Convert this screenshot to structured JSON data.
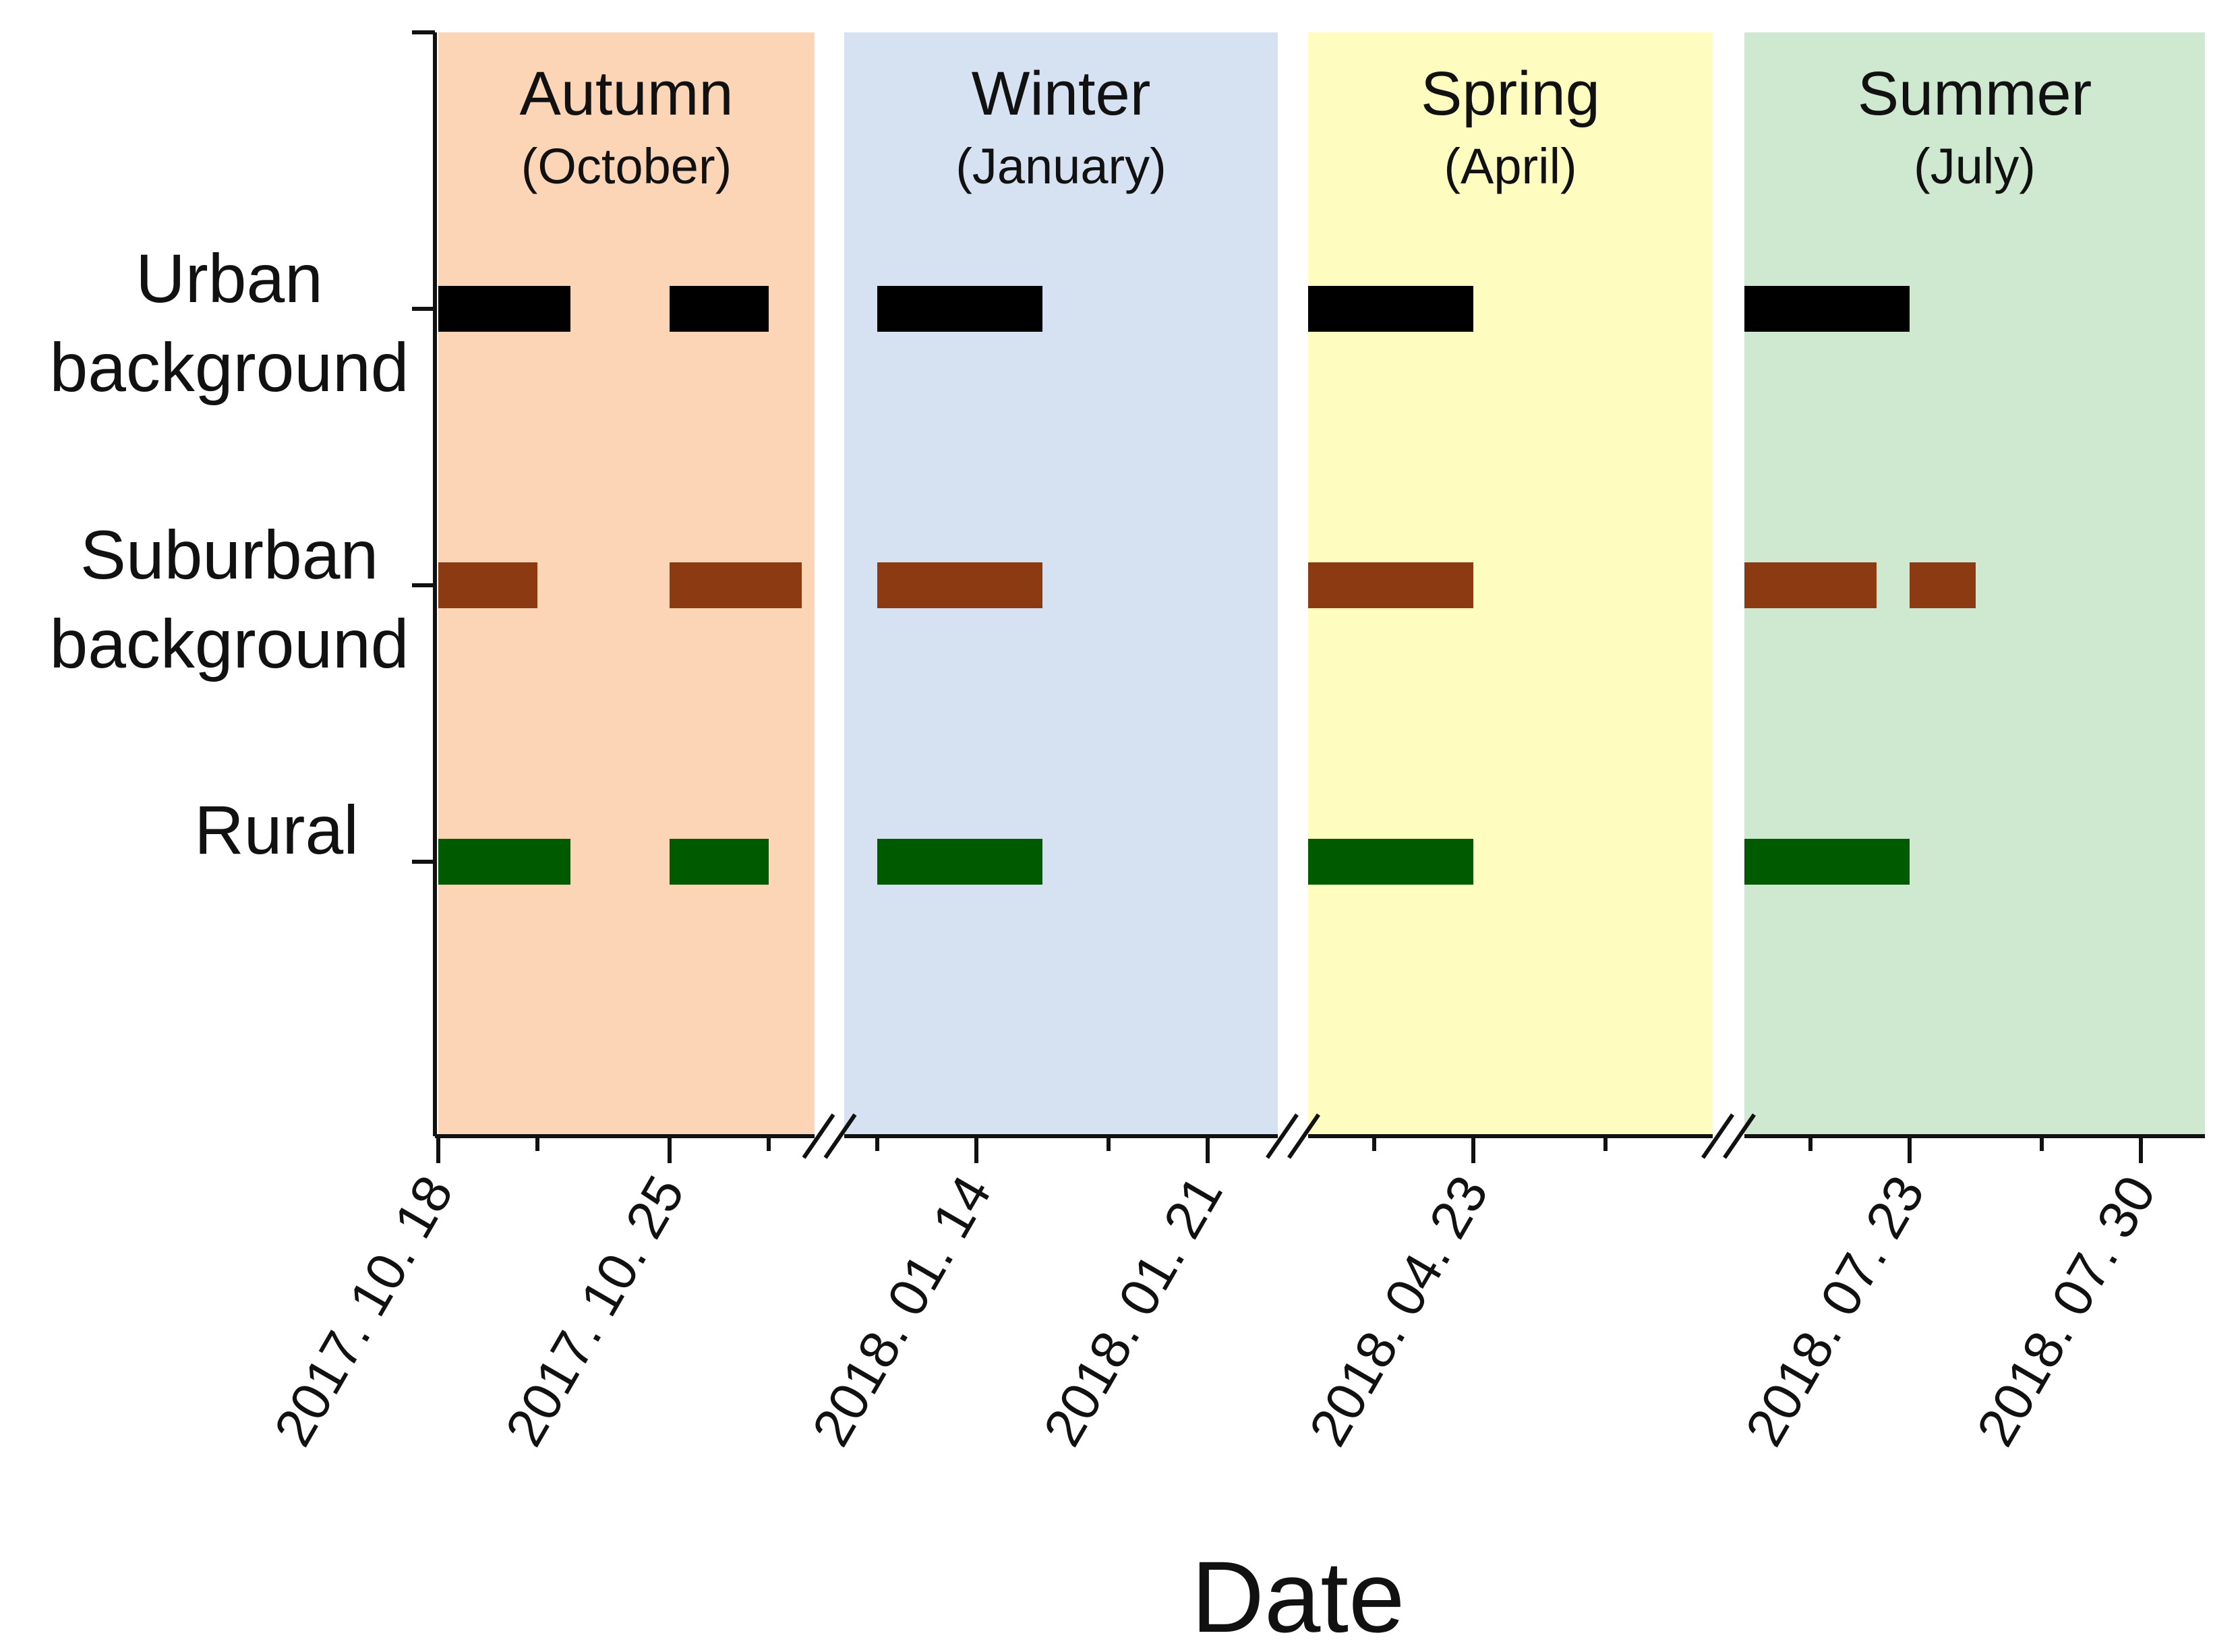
{
  "chart_data": {
    "type": "timeline",
    "xlabel": "Date",
    "categories": [
      "Urban background",
      "Suburban background",
      "Rural"
    ],
    "category_colors": {
      "Urban background": "#000000",
      "Suburban background": "#8B3A12",
      "Rural": "#005A00"
    },
    "periods": [
      {
        "season": "Autumn",
        "month": "(October)",
        "color": "#FBD5B5",
        "start": "2017-10-18",
        "end": "2017-10-30",
        "ticks": [
          "2017-10-18",
          "2017-10-21",
          "2017-10-25",
          "2017-10-28"
        ],
        "tick_labels": [
          {
            "date": "2017-10-18",
            "text": "2017. 10. 18"
          },
          {
            "date": "2017-10-25",
            "text": "2017. 10. 25"
          }
        ],
        "bars": {
          "Urban background": [
            [
              "2017-10-18",
              "2017-10-22"
            ],
            [
              "2017-10-25",
              "2017-10-28"
            ]
          ],
          "Suburban background": [
            [
              "2017-10-18",
              "2017-10-21"
            ],
            [
              "2017-10-25",
              "2017-10-29"
            ]
          ],
          "Rural": [
            [
              "2017-10-18",
              "2017-10-22"
            ],
            [
              "2017-10-25",
              "2017-10-28"
            ]
          ]
        }
      },
      {
        "season": "Winter",
        "month": "(January)",
        "color": "#D6E2F1",
        "start": "2018-01-10",
        "end": "2018-01-22",
        "ticks": [
          "2018-01-11",
          "2018-01-14",
          "2018-01-18",
          "2018-01-21"
        ],
        "tick_labels": [
          {
            "date": "2018-01-14",
            "text": "2018. 01. 14"
          },
          {
            "date": "2018-01-21",
            "text": "2018. 01. 21"
          }
        ],
        "bars": {
          "Urban background": [
            [
              "2018-01-11",
              "2018-01-16"
            ]
          ],
          "Suburban background": [
            [
              "2018-01-11",
              "2018-01-16"
            ]
          ],
          "Rural": [
            [
              "2018-01-11",
              "2018-01-16"
            ]
          ]
        }
      },
      {
        "season": "Spring",
        "month": "(April)",
        "color": "#FEFDBF",
        "start": "2018-04-18",
        "end": "2018-04-30",
        "ticks": [
          "2018-04-20",
          "2018-04-23",
          "2018-04-27"
        ],
        "tick_labels": [
          {
            "date": "2018-04-23",
            "text": "2018. 04. 23"
          }
        ],
        "bars": {
          "Urban background": [
            [
              "2018-04-18",
              "2018-04-23"
            ]
          ],
          "Suburban background": [
            [
              "2018-04-18",
              "2018-04-23"
            ]
          ],
          "Rural": [
            [
              "2018-04-18",
              "2018-04-23"
            ]
          ]
        }
      },
      {
        "season": "Summer",
        "month": "(July)",
        "color": "#CFE9D1",
        "start": "2018-07-18",
        "end": "2018-07-31",
        "ticks": [
          "2018-07-20",
          "2018-07-23",
          "2018-07-27",
          "2018-07-30"
        ],
        "tick_labels": [
          {
            "date": "2018-07-23",
            "text": "2018. 07. 23"
          },
          {
            "date": "2018-07-30",
            "text": "2018. 07. 30"
          }
        ],
        "bars": {
          "Urban background": [
            [
              "2018-07-18",
              "2018-07-23"
            ]
          ],
          "Suburban background": [
            [
              "2018-07-18",
              "2018-07-22"
            ],
            [
              "2018-07-23",
              "2018-07-25"
            ]
          ],
          "Rural": [
            [
              "2018-07-18",
              "2018-07-23"
            ]
          ]
        }
      }
    ],
    "axis_breaks": true,
    "grid": false,
    "legend": "none"
  }
}
